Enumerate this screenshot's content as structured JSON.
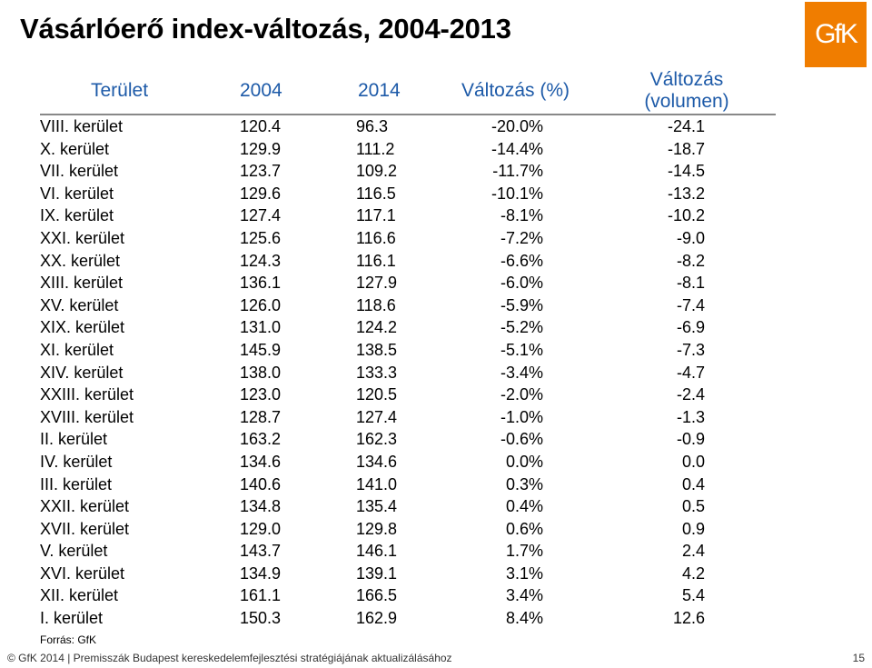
{
  "title": "Vásárlóerő index-változás, 2004-2013",
  "logo": "GfK",
  "headers": {
    "terulet": "Terület",
    "y2004": "2004",
    "y2014": "2014",
    "valtozas_pct": "Változás (%)",
    "valtozas_vol_1": "Változás",
    "valtozas_vol_2": "(volumen)"
  },
  "rows": [
    {
      "name": "VIII. kerület",
      "v2004": "120.4",
      "v2014": "96.3",
      "pct": "-20.0%",
      "vol": "-24.1"
    },
    {
      "name": "X. kerület",
      "v2004": "129.9",
      "v2014": "111.2",
      "pct": "-14.4%",
      "vol": "-18.7"
    },
    {
      "name": "VII. kerület",
      "v2004": "123.7",
      "v2014": "109.2",
      "pct": "-11.7%",
      "vol": "-14.5"
    },
    {
      "name": "VI. kerület",
      "v2004": "129.6",
      "v2014": "116.5",
      "pct": "-10.1%",
      "vol": "-13.2"
    },
    {
      "name": "IX. kerület",
      "v2004": "127.4",
      "v2014": "117.1",
      "pct": "-8.1%",
      "vol": "-10.2"
    },
    {
      "name": "XXI. kerület",
      "v2004": "125.6",
      "v2014": "116.6",
      "pct": "-7.2%",
      "vol": "-9.0"
    },
    {
      "name": "XX. kerület",
      "v2004": "124.3",
      "v2014": "116.1",
      "pct": "-6.6%",
      "vol": "-8.2"
    },
    {
      "name": "XIII. kerület",
      "v2004": "136.1",
      "v2014": "127.9",
      "pct": "-6.0%",
      "vol": "-8.1"
    },
    {
      "name": "XV. kerület",
      "v2004": "126.0",
      "v2014": "118.6",
      "pct": "-5.9%",
      "vol": "-7.4"
    },
    {
      "name": "XIX. kerület",
      "v2004": "131.0",
      "v2014": "124.2",
      "pct": "-5.2%",
      "vol": "-6.9"
    },
    {
      "name": "XI. kerület",
      "v2004": "145.9",
      "v2014": "138.5",
      "pct": "-5.1%",
      "vol": "-7.3"
    },
    {
      "name": "XIV. kerület",
      "v2004": "138.0",
      "v2014": "133.3",
      "pct": "-3.4%",
      "vol": "-4.7"
    },
    {
      "name": "XXIII. kerület",
      "v2004": "123.0",
      "v2014": "120.5",
      "pct": "-2.0%",
      "vol": "-2.4"
    },
    {
      "name": "XVIII. kerület",
      "v2004": "128.7",
      "v2014": "127.4",
      "pct": "-1.0%",
      "vol": "-1.3"
    },
    {
      "name": "II. kerület",
      "v2004": "163.2",
      "v2014": "162.3",
      "pct": "-0.6%",
      "vol": "-0.9"
    },
    {
      "name": "IV. kerület",
      "v2004": "134.6",
      "v2014": "134.6",
      "pct": "0.0%",
      "vol": "0.0"
    },
    {
      "name": "III. kerület",
      "v2004": "140.6",
      "v2014": "141.0",
      "pct": "0.3%",
      "vol": "0.4"
    },
    {
      "name": "XXII. kerület",
      "v2004": "134.8",
      "v2014": "135.4",
      "pct": "0.4%",
      "vol": "0.5"
    },
    {
      "name": "XVII. kerület",
      "v2004": "129.0",
      "v2014": "129.8",
      "pct": "0.6%",
      "vol": "0.9"
    },
    {
      "name": "V. kerület",
      "v2004": "143.7",
      "v2014": "146.1",
      "pct": "1.7%",
      "vol": "2.4"
    },
    {
      "name": "XVI. kerület",
      "v2004": "134.9",
      "v2014": "139.1",
      "pct": "3.1%",
      "vol": "4.2"
    },
    {
      "name": "XII. kerület",
      "v2004": "161.1",
      "v2014": "166.5",
      "pct": "3.4%",
      "vol": "5.4"
    },
    {
      "name": "I. kerület",
      "v2004": "150.3",
      "v2014": "162.9",
      "pct": "8.4%",
      "vol": "12.6"
    }
  ],
  "source": "Forrás: GfK",
  "footer": {
    "left": "© GfK 2014 | Premisszák Budapest kereskedelemfejlesztési stratégiájának aktualizálásához",
    "page": "15"
  },
  "colors": {
    "header_text": "#1d5aa8",
    "logo_bg": "#f07d00"
  }
}
